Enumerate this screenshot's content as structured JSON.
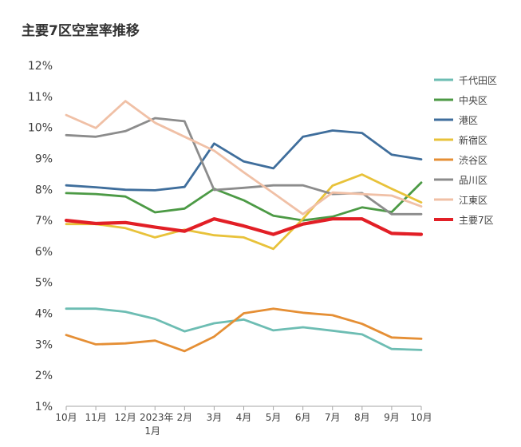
{
  "chart_data": {
    "type": "line",
    "title": "主要7区空室率推移",
    "xlabel": "",
    "ylabel": "",
    "ylim": [
      1,
      12
    ],
    "yticks": [
      "1%",
      "2%",
      "3%",
      "4%",
      "5%",
      "6%",
      "7%",
      "8%",
      "9%",
      "10%",
      "11%",
      "12%"
    ],
    "categories": [
      "10月",
      "11月",
      "12月",
      "2023年1月",
      "2月",
      "3月",
      "4月",
      "5月",
      "6月",
      "7月",
      "8月",
      "9月",
      "10月"
    ],
    "category_lines": [
      [
        "10月"
      ],
      [
        "11月"
      ],
      [
        "12月"
      ],
      [
        "2023年",
        "1月"
      ],
      [
        "2月"
      ],
      [
        "3月"
      ],
      [
        "4月"
      ],
      [
        "5月"
      ],
      [
        "6月"
      ],
      [
        "7月"
      ],
      [
        "8月"
      ],
      [
        "9月"
      ],
      [
        "10月"
      ]
    ],
    "legend_position": "right",
    "series": [
      {
        "name": "千代田区",
        "color": "#6dbdb3",
        "width": 2.8,
        "values": [
          4.15,
          4.15,
          4.05,
          3.82,
          3.42,
          3.68,
          3.8,
          3.45,
          3.55,
          3.44,
          3.32,
          2.85,
          2.82
        ]
      },
      {
        "name": "中央区",
        "color": "#4c9a45",
        "width": 2.8,
        "values": [
          7.88,
          7.85,
          7.77,
          7.26,
          7.38,
          8.02,
          7.65,
          7.15,
          7.0,
          7.12,
          7.42,
          7.27,
          8.22
        ]
      },
      {
        "name": "港区",
        "color": "#3f6e9c",
        "width": 2.8,
        "values": [
          8.13,
          8.07,
          7.99,
          7.97,
          8.08,
          9.48,
          8.9,
          8.68,
          9.7,
          9.9,
          9.82,
          9.12,
          8.97
        ]
      },
      {
        "name": "新宿区",
        "color": "#e8c23a",
        "width": 2.8,
        "values": [
          6.88,
          6.88,
          6.75,
          6.45,
          6.7,
          6.52,
          6.45,
          6.08,
          7.05,
          8.12,
          8.48,
          8.02,
          7.58
        ]
      },
      {
        "name": "渋谷区",
        "color": "#e58f35",
        "width": 2.8,
        "values": [
          3.3,
          3.0,
          3.03,
          3.12,
          2.78,
          3.25,
          4.0,
          4.15,
          4.02,
          3.94,
          3.66,
          3.22,
          3.18
        ]
      },
      {
        "name": "品川区",
        "color": "#8c8c8c",
        "width": 2.8,
        "values": [
          9.75,
          9.7,
          9.88,
          10.3,
          10.2,
          7.98,
          8.05,
          8.13,
          8.13,
          7.85,
          7.88,
          7.2,
          7.2
        ]
      },
      {
        "name": "江東区",
        "color": "#f0c0a6",
        "width": 2.8,
        "values": [
          10.4,
          9.98,
          10.85,
          10.15,
          9.7,
          9.25,
          8.55,
          7.88,
          7.2,
          7.9,
          7.85,
          7.8,
          7.45
        ]
      },
      {
        "name": "主要7区",
        "color": "#e21f26",
        "width": 4.2,
        "values": [
          7.0,
          6.9,
          6.93,
          6.78,
          6.65,
          7.05,
          6.82,
          6.55,
          6.88,
          7.05,
          7.05,
          6.58,
          6.55
        ]
      }
    ]
  }
}
